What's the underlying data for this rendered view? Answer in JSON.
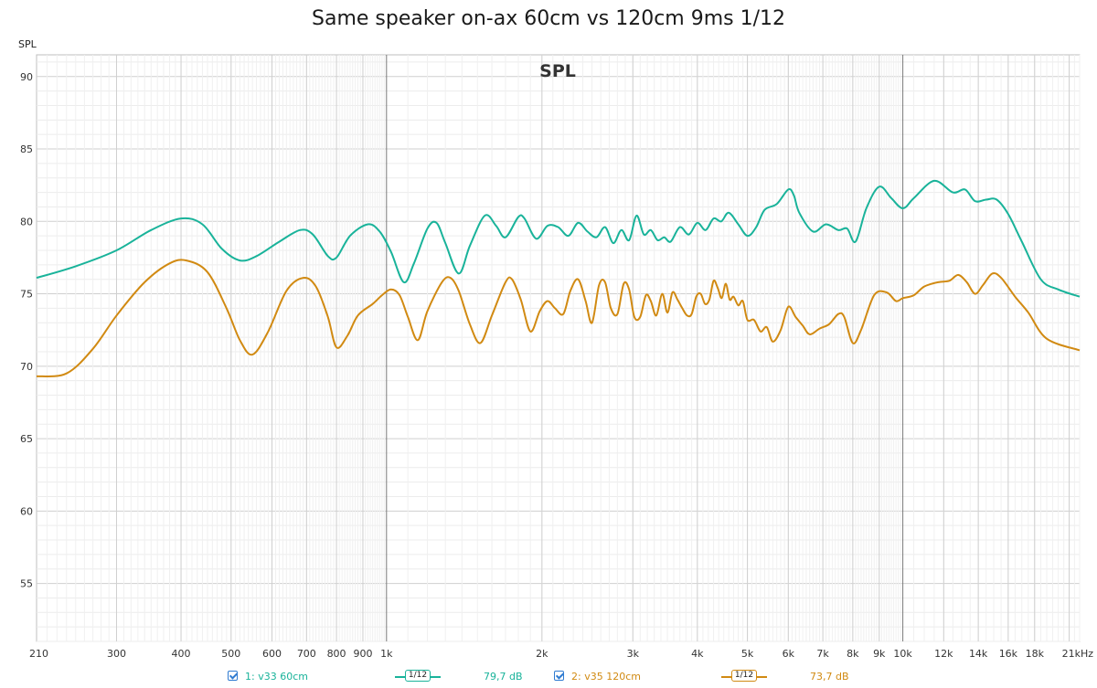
{
  "title": "Same speaker on-ax 60cm vs 120cm 9ms 1/12",
  "chart_data": {
    "type": "line",
    "title": "Same speaker on-ax 60cm vs 120cm 9ms 1/12",
    "panel_label": "SPL",
    "ylabel": "SPL",
    "x_scale": "log",
    "xlim": [
      210,
      22000
    ],
    "ylim": [
      51,
      91.5
    ],
    "y_ticks": [
      55,
      60,
      65,
      70,
      75,
      80,
      85,
      90
    ],
    "x_ticks": [
      {
        "v": 210,
        "label": "210"
      },
      {
        "v": 300,
        "label": "300"
      },
      {
        "v": 400,
        "label": "400"
      },
      {
        "v": 500,
        "label": "500"
      },
      {
        "v": 600,
        "label": "600"
      },
      {
        "v": 700,
        "label": "700"
      },
      {
        "v": 800,
        "label": "800"
      },
      {
        "v": 900,
        "label": "900"
      },
      {
        "v": 1000,
        "label": "1k"
      },
      {
        "v": 2000,
        "label": "2k"
      },
      {
        "v": 3000,
        "label": "3k"
      },
      {
        "v": 4000,
        "label": "4k"
      },
      {
        "v": 5000,
        "label": "5k"
      },
      {
        "v": 6000,
        "label": "6k"
      },
      {
        "v": 7000,
        "label": "7k"
      },
      {
        "v": 8000,
        "label": "8k"
      },
      {
        "v": 9000,
        "label": "9k"
      },
      {
        "v": 10000,
        "label": "10k"
      },
      {
        "v": 12000,
        "label": "12k"
      },
      {
        "v": 14000,
        "label": "14k"
      },
      {
        "v": 16000,
        "label": "16k"
      },
      {
        "v": 18000,
        "label": "18k"
      },
      {
        "v": 21000,
        "label": "21kHz"
      }
    ],
    "grid": true,
    "series": [
      {
        "name": "1: v33 60cm",
        "color": "#19b39a",
        "points": [
          [
            210,
            76.1
          ],
          [
            250,
            76.9
          ],
          [
            300,
            78.0
          ],
          [
            350,
            79.4
          ],
          [
            400,
            80.2
          ],
          [
            440,
            79.8
          ],
          [
            480,
            78.1
          ],
          [
            520,
            77.3
          ],
          [
            560,
            77.6
          ],
          [
            620,
            78.6
          ],
          [
            680,
            79.4
          ],
          [
            720,
            79.1
          ],
          [
            770,
            77.6
          ],
          [
            800,
            77.5
          ],
          [
            850,
            79.0
          ],
          [
            920,
            79.8
          ],
          [
            970,
            79.3
          ],
          [
            1020,
            77.9
          ],
          [
            1080,
            75.8
          ],
          [
            1130,
            77.1
          ],
          [
            1200,
            79.5
          ],
          [
            1250,
            79.9
          ],
          [
            1300,
            78.5
          ],
          [
            1380,
            76.4
          ],
          [
            1450,
            78.3
          ],
          [
            1550,
            80.4
          ],
          [
            1630,
            79.7
          ],
          [
            1700,
            78.9
          ],
          [
            1800,
            80.3
          ],
          [
            1850,
            80.2
          ],
          [
            1950,
            78.8
          ],
          [
            2050,
            79.7
          ],
          [
            2150,
            79.6
          ],
          [
            2250,
            79.0
          ],
          [
            2350,
            79.9
          ],
          [
            2450,
            79.3
          ],
          [
            2550,
            78.9
          ],
          [
            2650,
            79.6
          ],
          [
            2750,
            78.5
          ],
          [
            2850,
            79.4
          ],
          [
            2950,
            78.7
          ],
          [
            3050,
            80.4
          ],
          [
            3150,
            79.1
          ],
          [
            3250,
            79.4
          ],
          [
            3350,
            78.7
          ],
          [
            3450,
            78.9
          ],
          [
            3550,
            78.6
          ],
          [
            3700,
            79.6
          ],
          [
            3850,
            79.1
          ],
          [
            4000,
            79.9
          ],
          [
            4150,
            79.4
          ],
          [
            4300,
            80.2
          ],
          [
            4450,
            80.0
          ],
          [
            4600,
            80.6
          ],
          [
            4800,
            79.8
          ],
          [
            5000,
            79.0
          ],
          [
            5200,
            79.6
          ],
          [
            5400,
            80.8
          ],
          [
            5700,
            81.2
          ],
          [
            6000,
            82.2
          ],
          [
            6150,
            81.8
          ],
          [
            6300,
            80.6
          ],
          [
            6700,
            79.3
          ],
          [
            7100,
            79.8
          ],
          [
            7500,
            79.4
          ],
          [
            7800,
            79.5
          ],
          [
            8100,
            78.6
          ],
          [
            8500,
            80.9
          ],
          [
            9000,
            82.4
          ],
          [
            9500,
            81.6
          ],
          [
            10000,
            80.9
          ],
          [
            10500,
            81.6
          ],
          [
            11500,
            82.8
          ],
          [
            12500,
            82.0
          ],
          [
            13200,
            82.2
          ],
          [
            13800,
            81.4
          ],
          [
            14500,
            81.5
          ],
          [
            15200,
            81.5
          ],
          [
            16000,
            80.5
          ],
          [
            17000,
            78.6
          ],
          [
            18500,
            76.0
          ],
          [
            20000,
            75.3
          ],
          [
            22000,
            74.8
          ]
        ]
      },
      {
        "name": "2: v35 120cm",
        "color": "#d18a12",
        "points": [
          [
            210,
            69.3
          ],
          [
            240,
            69.5
          ],
          [
            270,
            71.2
          ],
          [
            300,
            73.5
          ],
          [
            340,
            75.8
          ],
          [
            380,
            77.1
          ],
          [
            410,
            77.3
          ],
          [
            450,
            76.5
          ],
          [
            490,
            74.0
          ],
          [
            520,
            71.8
          ],
          [
            550,
            70.8
          ],
          [
            590,
            72.4
          ],
          [
            640,
            75.2
          ],
          [
            690,
            76.1
          ],
          [
            730,
            75.5
          ],
          [
            770,
            73.4
          ],
          [
            800,
            71.3
          ],
          [
            840,
            72.1
          ],
          [
            880,
            73.5
          ],
          [
            940,
            74.3
          ],
          [
            980,
            74.9
          ],
          [
            1020,
            75.3
          ],
          [
            1060,
            74.9
          ],
          [
            1100,
            73.4
          ],
          [
            1150,
            71.8
          ],
          [
            1200,
            73.8
          ],
          [
            1280,
            75.8
          ],
          [
            1330,
            76.1
          ],
          [
            1380,
            75.2
          ],
          [
            1450,
            72.9
          ],
          [
            1520,
            71.6
          ],
          [
            1600,
            73.5
          ],
          [
            1700,
            75.8
          ],
          [
            1750,
            76.0
          ],
          [
            1820,
            74.6
          ],
          [
            1900,
            72.4
          ],
          [
            1980,
            73.8
          ],
          [
            2050,
            74.5
          ],
          [
            2120,
            74.0
          ],
          [
            2200,
            73.6
          ],
          [
            2270,
            75.2
          ],
          [
            2350,
            76.0
          ],
          [
            2430,
            74.5
          ],
          [
            2500,
            73.0
          ],
          [
            2580,
            75.6
          ],
          [
            2650,
            75.8
          ],
          [
            2720,
            74.0
          ],
          [
            2800,
            73.6
          ],
          [
            2880,
            75.7
          ],
          [
            2950,
            75.3
          ],
          [
            3020,
            73.4
          ],
          [
            3100,
            73.4
          ],
          [
            3180,
            74.9
          ],
          [
            3250,
            74.5
          ],
          [
            3330,
            73.5
          ],
          [
            3420,
            75.0
          ],
          [
            3500,
            73.7
          ],
          [
            3580,
            75.1
          ],
          [
            3660,
            74.6
          ],
          [
            3740,
            74.0
          ],
          [
            3820,
            73.5
          ],
          [
            3900,
            73.6
          ],
          [
            3980,
            74.8
          ],
          [
            4060,
            75.0
          ],
          [
            4140,
            74.3
          ],
          [
            4220,
            74.6
          ],
          [
            4300,
            75.9
          ],
          [
            4380,
            75.4
          ],
          [
            4460,
            74.7
          ],
          [
            4540,
            75.7
          ],
          [
            4620,
            74.6
          ],
          [
            4700,
            74.8
          ],
          [
            4800,
            74.2
          ],
          [
            4900,
            74.5
          ],
          [
            5000,
            73.2
          ],
          [
            5150,
            73.2
          ],
          [
            5300,
            72.4
          ],
          [
            5450,
            72.7
          ],
          [
            5600,
            71.7
          ],
          [
            5800,
            72.5
          ],
          [
            6000,
            74.1
          ],
          [
            6200,
            73.4
          ],
          [
            6400,
            72.8
          ],
          [
            6600,
            72.2
          ],
          [
            6900,
            72.6
          ],
          [
            7200,
            72.9
          ],
          [
            7500,
            73.6
          ],
          [
            7700,
            73.4
          ],
          [
            8000,
            71.6
          ],
          [
            8300,
            72.5
          ],
          [
            8800,
            74.9
          ],
          [
            9300,
            75.1
          ],
          [
            9700,
            74.5
          ],
          [
            10000,
            74.7
          ],
          [
            10500,
            74.9
          ],
          [
            11000,
            75.5
          ],
          [
            11700,
            75.8
          ],
          [
            12300,
            75.9
          ],
          [
            12800,
            76.3
          ],
          [
            13300,
            75.8
          ],
          [
            13800,
            75.0
          ],
          [
            14300,
            75.6
          ],
          [
            14900,
            76.4
          ],
          [
            15500,
            76.1
          ],
          [
            16500,
            74.8
          ],
          [
            17500,
            73.7
          ],
          [
            19000,
            71.9
          ],
          [
            22000,
            71.1
          ]
        ]
      }
    ]
  },
  "legend": {
    "items": [
      {
        "label": "1: v33 60cm",
        "smoothing": "1/12",
        "level": "79,7 dB",
        "color": "#19b39a"
      },
      {
        "label": "2: v35 120cm",
        "smoothing": "1/12",
        "level": "73,7 dB",
        "color": "#d18a12"
      }
    ]
  }
}
